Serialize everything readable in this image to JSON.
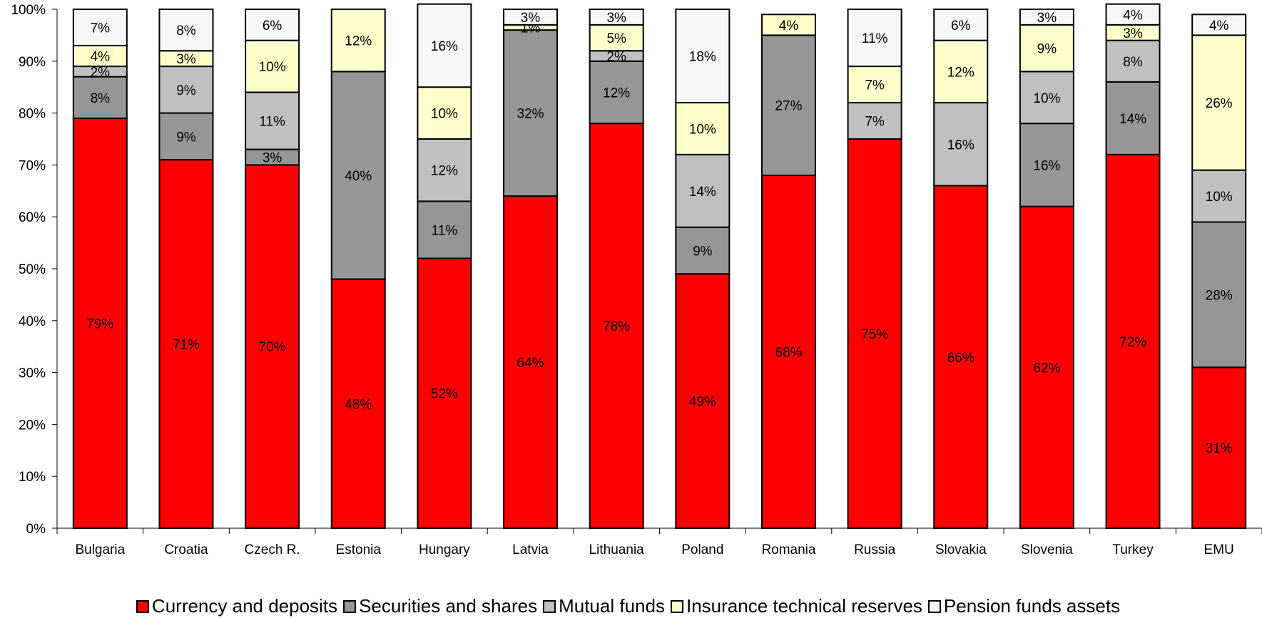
{
  "chart_data": {
    "type": "bar",
    "stacked": true,
    "categories": [
      "Bulgaria",
      "Croatia",
      "Czech R.",
      "Estonia",
      "Hungary",
      "Latvia",
      "Lithuania",
      "Poland",
      "Romania",
      "Russia",
      "Slovakia",
      "Slovenia",
      "Turkey",
      "EMU"
    ],
    "series": [
      {
        "name": "Currency and deposits",
        "color": "#ff0000",
        "values": [
          79,
          71,
          70,
          48,
          52,
          64,
          78,
          49,
          68,
          75,
          66,
          62,
          72,
          31
        ]
      },
      {
        "name": "Securities and shares",
        "color": "#969696",
        "values": [
          8,
          9,
          3,
          40,
          11,
          32,
          12,
          9,
          27,
          0,
          0,
          16,
          14,
          28
        ]
      },
      {
        "name": "Mutual funds",
        "color": "#c0c0c0",
        "values": [
          2,
          9,
          11,
          0,
          12,
          0,
          2,
          14,
          0,
          7,
          16,
          10,
          8,
          10
        ]
      },
      {
        "name": "Insurance technical reserves",
        "color": "#ffffcc",
        "values": [
          4,
          3,
          10,
          12,
          10,
          1,
          5,
          10,
          4,
          7,
          12,
          9,
          3,
          26
        ]
      },
      {
        "name": "Pension funds assets",
        "color": "#f7f7f7",
        "values": [
          7,
          8,
          6,
          0,
          16,
          3,
          3,
          18,
          0,
          11,
          6,
          3,
          4,
          4
        ]
      }
    ],
    "labels": [
      [
        "79%",
        "8%",
        "2%",
        "4%",
        "7%"
      ],
      [
        "71%",
        "9%",
        "9%",
        "3%",
        "8%"
      ],
      [
        "70%",
        "3%",
        "11%",
        "10%",
        "6%"
      ],
      [
        "48%",
        "40%",
        "",
        "12%",
        ""
      ],
      [
        "52%",
        "11%",
        "12%",
        "10%",
        "16%"
      ],
      [
        "64%",
        "32%",
        "",
        "1%",
        "3%"
      ],
      [
        "78%",
        "12%",
        "2%",
        "5%",
        "3%"
      ],
      [
        "49%",
        "9%",
        "14%",
        "10%",
        "18%"
      ],
      [
        "68%",
        "27%",
        "",
        "4%",
        ""
      ],
      [
        "75%",
        "",
        "7%",
        "7%",
        "11%"
      ],
      [
        "66%",
        "",
        "16%",
        "12%",
        "6%"
      ],
      [
        "62%",
        "16%",
        "10%",
        "9%",
        "3%"
      ],
      [
        "72%",
        "14%",
        "8%",
        "3%",
        "4%"
      ],
      [
        "31%",
        "28%",
        "10%",
        "26%",
        "4%"
      ]
    ],
    "y_ticks": [
      "0%",
      "10%",
      "20%",
      "30%",
      "40%",
      "50%",
      "60%",
      "70%",
      "80%",
      "90%",
      "100%"
    ],
    "ylim": [
      0,
      100
    ],
    "xlabel": "",
    "ylabel": "",
    "title": "",
    "grid": false,
    "legend_position": "bottom"
  }
}
